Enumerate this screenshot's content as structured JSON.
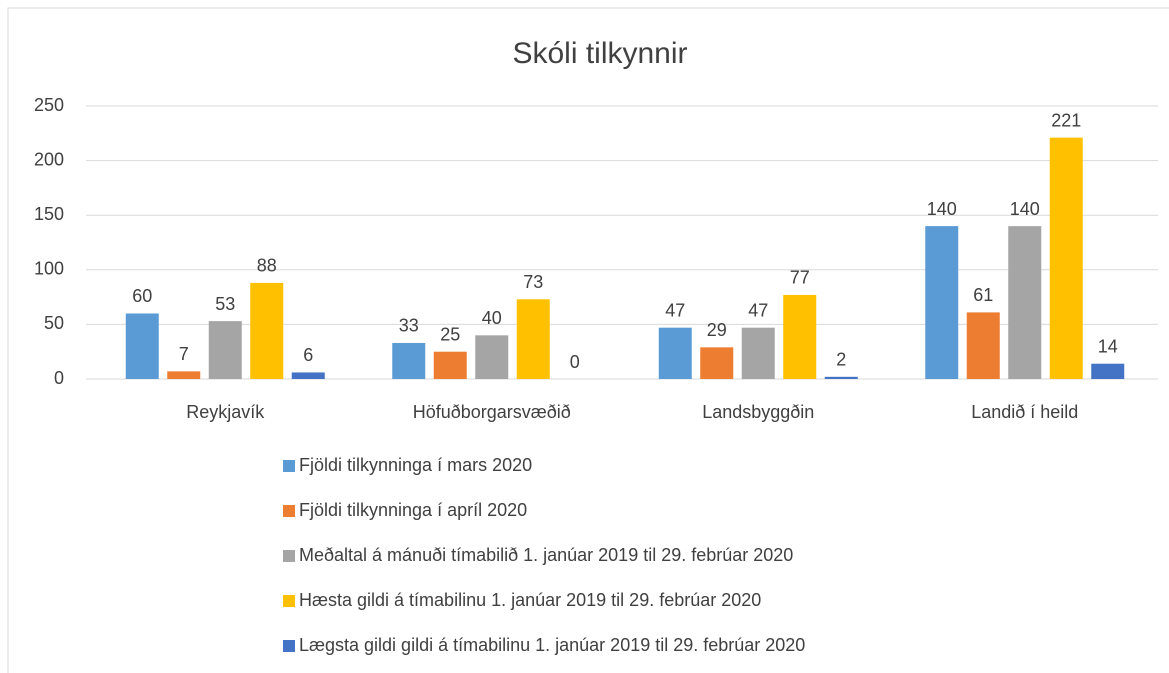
{
  "chart_data": {
    "type": "bar",
    "title": "Skóli tilkynnir",
    "categories": [
      "Reykjavík",
      "Höfuðborgarsvæðið",
      "Landsbyggðin",
      "Landið í heild"
    ],
    "series": [
      {
        "name": "Fjöldi tilkynninga í mars 2020",
        "color": "#5b9bd5",
        "values": [
          60,
          33,
          47,
          140
        ]
      },
      {
        "name": "Fjöldi tilkynninga í apríl 2020",
        "color": "#ed7d31",
        "values": [
          7,
          25,
          29,
          61
        ]
      },
      {
        "name": "Meðaltal á mánuði tímabilið 1. janúar 2019 til 29. febrúar 2020",
        "color": "#a5a5a5",
        "values": [
          53,
          40,
          47,
          140
        ]
      },
      {
        "name": "Hæsta gildi á tímabilinu 1. janúar 2019 til 29. febrúar 2020",
        "color": "#ffc000",
        "values": [
          88,
          73,
          77,
          221
        ]
      },
      {
        "name": "Lægsta gildi gildi á tímabilinu 1. janúar 2019 til 29. febrúar 2020",
        "color": "#4472c4",
        "values": [
          6,
          0,
          2,
          14
        ]
      }
    ],
    "ylim": [
      0,
      250
    ],
    "yticks": [
      0,
      50,
      100,
      150,
      200,
      250
    ],
    "grid": true,
    "legend": "bottom"
  }
}
